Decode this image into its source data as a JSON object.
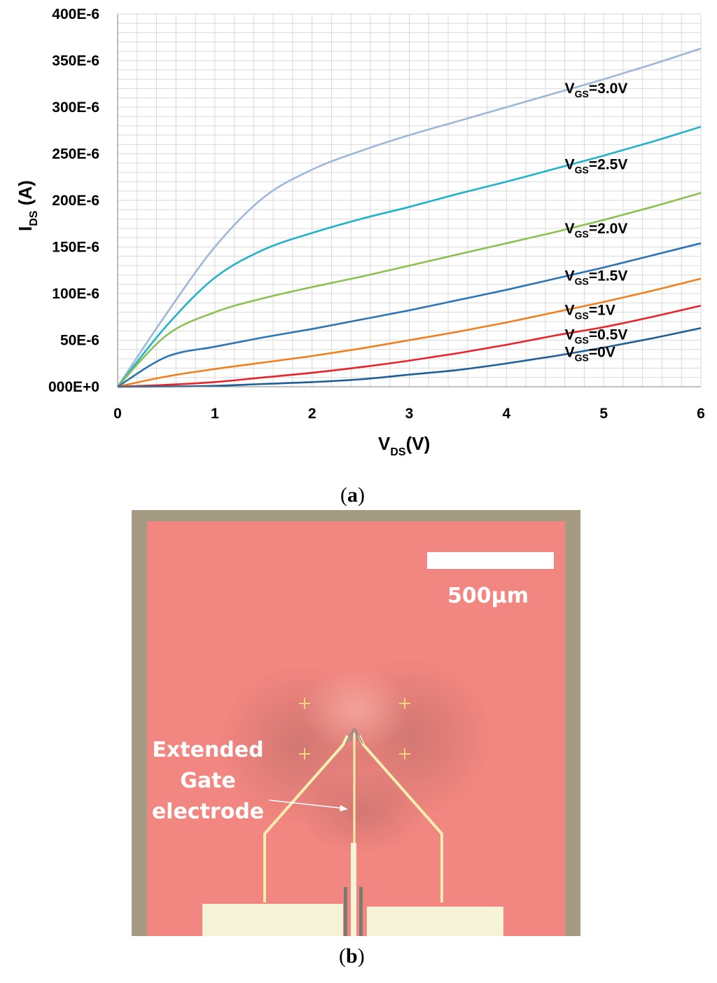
{
  "panel_a_label": "a",
  "panel_b_label": "b",
  "chart_data": {
    "type": "line",
    "xlabel": "V",
    "xlabel_sub": "DS",
    "xlabel_unit": "(V)",
    "ylabel": "I",
    "ylabel_sub": "DS",
    "ylabel_unit": " (A)",
    "xlim": [
      0,
      6
    ],
    "ylim": [
      0,
      0.0004
    ],
    "x_ticks": [
      0,
      1,
      2,
      3,
      4,
      5,
      6
    ],
    "x_tick_labels": [
      "0",
      "1",
      "2",
      "3",
      "4",
      "5",
      "6"
    ],
    "y_ticks": [
      0,
      5e-05,
      0.0001,
      0.00015,
      0.0002,
      0.00025,
      0.0003,
      0.00035,
      0.0004
    ],
    "y_tick_labels": [
      "000E+0",
      "50E-6",
      "100E-6",
      "150E-6",
      "200E-6",
      "250E-6",
      "300E-6",
      "350E-6",
      "400E-6"
    ],
    "grid": true,
    "series": [
      {
        "name": "VGS=3.0V",
        "label_main": "V",
        "label_sub": "GS",
        "label_rest": "=3.0V",
        "color": "#9fb7d8",
        "x": [
          0,
          0.5,
          1,
          1.5,
          2,
          2.5,
          3,
          3.5,
          4,
          4.5,
          5,
          5.5,
          6
        ],
        "y": [
          0,
          7.8e-05,
          0.00015,
          0.000203,
          0.000233,
          0.000253,
          0.00027,
          0.000285,
          0.0003,
          0.000315,
          0.00033,
          0.000346,
          0.000363
        ]
      },
      {
        "name": "VGS=2.5V",
        "label_main": "V",
        "label_sub": "GS",
        "label_rest": "=2.5V",
        "color": "#22b2c9",
        "x": [
          0,
          0.5,
          1,
          1.5,
          2,
          2.5,
          3,
          3.5,
          4,
          4.5,
          5,
          5.5,
          6
        ],
        "y": [
          0,
          6.5e-05,
          0.000117,
          0.000147,
          0.000165,
          0.00018,
          0.000193,
          0.000207,
          0.00022,
          0.000234,
          0.000248,
          0.000263,
          0.000279
        ]
      },
      {
        "name": "VGS=2.0V",
        "label_main": "V",
        "label_sub": "GS",
        "label_rest": "=2.0V",
        "color": "#8cc152",
        "x": [
          0,
          0.5,
          1,
          1.5,
          2,
          2.5,
          3,
          3.5,
          4,
          4.5,
          5,
          5.5,
          6
        ],
        "y": [
          0,
          5.5e-05,
          8e-05,
          9.5e-05,
          0.000107,
          0.000118,
          0.00013,
          0.000142,
          0.000154,
          0.000166,
          0.000179,
          0.000193,
          0.000208
        ]
      },
      {
        "name": "VGS=1.5V",
        "label_main": "V",
        "label_sub": "GS",
        "label_rest": "=1.5V",
        "color": "#2e75b6",
        "x": [
          0,
          0.5,
          1,
          1.5,
          2,
          2.5,
          3,
          3.5,
          4,
          4.5,
          5,
          5.5,
          6
        ],
        "y": [
          0,
          3.2e-05,
          4.3e-05,
          5.3e-05,
          6.2e-05,
          7.2e-05,
          8.2e-05,
          9.3e-05,
          0.000104,
          0.000116,
          0.000128,
          0.000141,
          0.000154
        ]
      },
      {
        "name": "VGS=1V",
        "label_main": "V",
        "label_sub": "GS",
        "label_rest": "=1V",
        "color": "#f0801e",
        "x": [
          0,
          0.5,
          1,
          1.5,
          2,
          2.5,
          3,
          3.5,
          4,
          4.5,
          5,
          5.5,
          6
        ],
        "y": [
          0,
          1.1e-05,
          1.9e-05,
          2.6e-05,
          3.3e-05,
          4.1e-05,
          5e-05,
          5.9e-05,
          6.9e-05,
          8e-05,
          9.1e-05,
          0.000103,
          0.000116
        ]
      },
      {
        "name": "VGS=0.5V",
        "label_main": "V",
        "label_sub": "GS",
        "label_rest": "=0.5V",
        "color": "#e8232a",
        "x": [
          0,
          0.5,
          1,
          1.5,
          2,
          2.5,
          3,
          3.5,
          4,
          4.5,
          5,
          5.5,
          6
        ],
        "y": [
          0,
          2e-06,
          5e-06,
          1e-05,
          1.5e-05,
          2.1e-05,
          2.8e-05,
          3.6e-05,
          4.5e-05,
          5.5e-05,
          6.4e-05,
          7.5e-05,
          8.7e-05
        ]
      },
      {
        "name": "VGS=0V",
        "label_main": "V",
        "label_sub": "GS",
        "label_rest": "=0V",
        "color": "#1f5f96",
        "x": [
          0,
          0.5,
          1,
          1.5,
          2,
          2.5,
          3,
          3.5,
          4,
          4.5,
          5,
          5.5,
          6
        ],
        "y": [
          0,
          3e-07,
          1e-06,
          3e-06,
          5e-06,
          8e-06,
          1.3e-05,
          1.8e-05,
          2.5e-05,
          3.3e-05,
          4.2e-05,
          5.2e-05,
          6.3e-05
        ]
      }
    ]
  },
  "micrograph": {
    "scale_bar_label": "500µm",
    "annotation_line1": "Extended",
    "annotation_line2": "Gate",
    "annotation_line3": "electrode",
    "substrate_color": "#f28680",
    "frame_color": "#a59b82",
    "pad_color": "#f6f4d8",
    "trace_color": "#f3efb0"
  }
}
